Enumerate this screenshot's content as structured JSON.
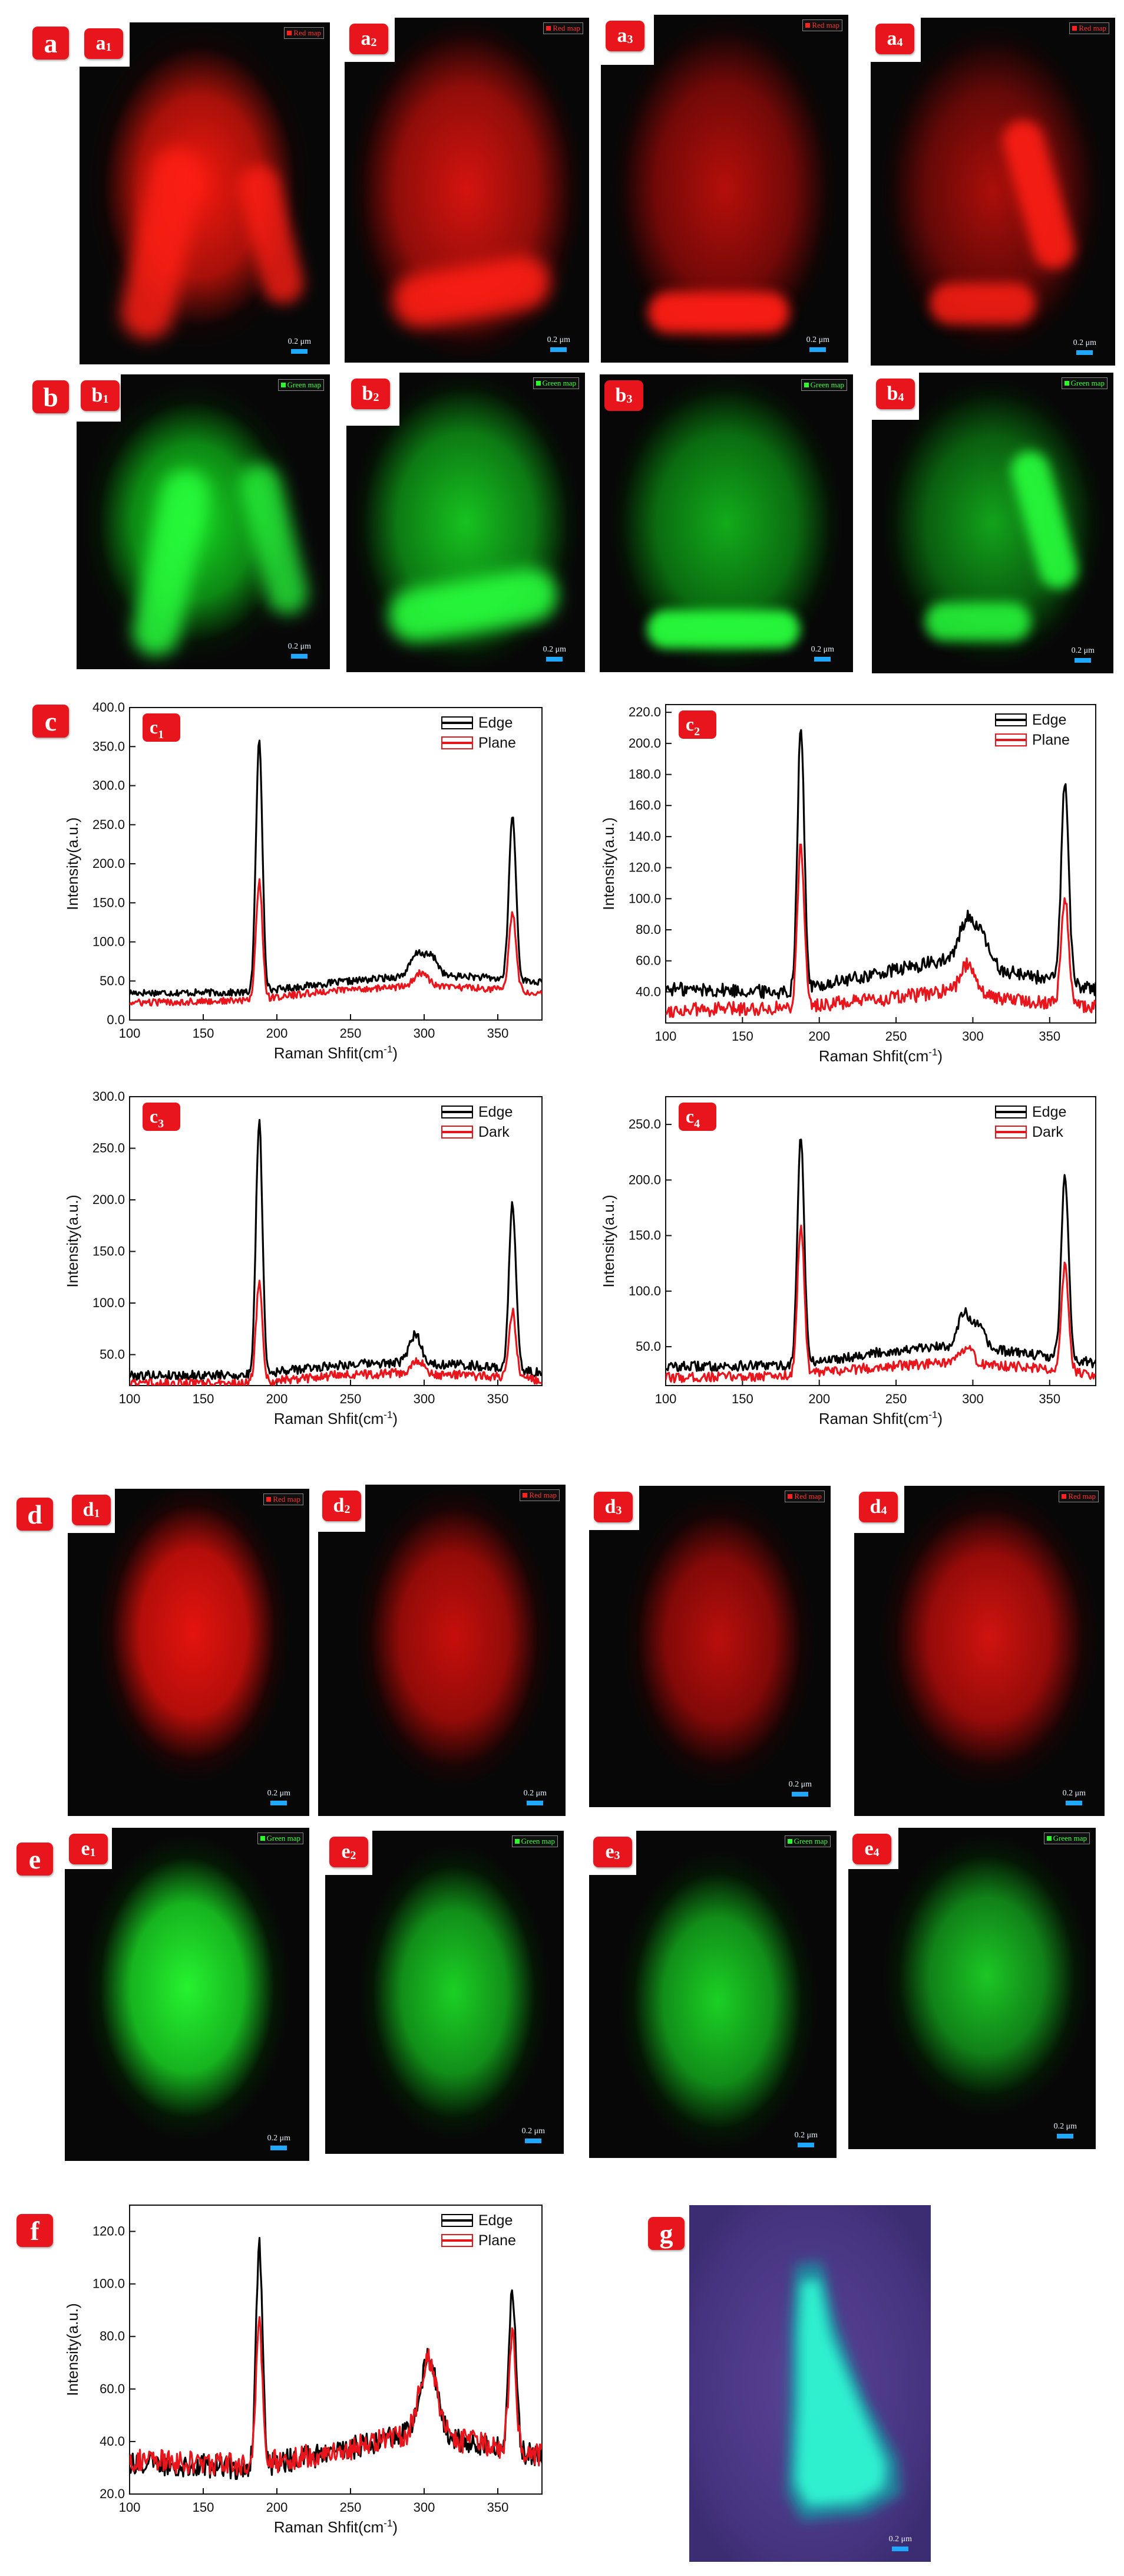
{
  "panels": {
    "a": "a",
    "b": "b",
    "c": "c",
    "d": "d",
    "e": "e",
    "f": "f",
    "g": "g"
  },
  "sub_letters": {
    "a": "a",
    "b": "b",
    "c": "c",
    "d": "d",
    "e": "e"
  },
  "sub_numbers": [
    "1",
    "2",
    "3",
    "4"
  ],
  "legend_labels": {
    "red": "Red map",
    "green": "Green map"
  },
  "scale_text": "0.2 μm",
  "colors": {
    "red": "#ff1a10",
    "green": "#1aff2a",
    "cyan": "#2af0d0",
    "purple": "#5a3a8a",
    "edge": "#000000",
    "plane": "#e8161c",
    "scalebar": "#1ea9ff"
  },
  "chart_data": [
    {
      "id": "c1",
      "label": "c",
      "sub": "1",
      "type": "line",
      "xlabel": "Raman Shfit(cm",
      "xlabel_sup": "-1",
      "xlabel_end": ")",
      "ylabel": "Intensity(a.u.)",
      "xlim": [
        100,
        380
      ],
      "ylim": [
        0,
        400
      ],
      "xticks": [
        100,
        150,
        200,
        250,
        300,
        350
      ],
      "yticks": [
        "0.0",
        "50.0",
        "100.0",
        "150.0",
        "200.0",
        "250.0",
        "300.0",
        "350.0",
        "400.0"
      ],
      "ytick_values": [
        0,
        50,
        100,
        150,
        200,
        250,
        300,
        350,
        400
      ],
      "legend_position": "top-right",
      "series": [
        {
          "name": "Edge",
          "color": "#000000",
          "baseline": [
            [
              100,
              35
            ],
            [
              180,
              35
            ],
            [
              240,
              48
            ],
            [
              280,
              55
            ],
            [
              330,
              56
            ],
            [
              380,
              48
            ]
          ],
          "peaks": [
            [
              188,
              320,
              2.2
            ],
            [
              296,
              30,
              5
            ],
            [
              306,
              22,
              4
            ],
            [
              360,
              210,
              2.4
            ]
          ]
        },
        {
          "name": "Plane",
          "color": "#e8161c",
          "baseline": [
            [
              100,
              22
            ],
            [
              180,
              25
            ],
            [
              240,
              38
            ],
            [
              280,
              42
            ],
            [
              330,
              42
            ],
            [
              380,
              35
            ]
          ],
          "peaks": [
            [
              188,
              150,
              2.2
            ],
            [
              298,
              18,
              5
            ],
            [
              360,
              100,
              2.4
            ]
          ]
        }
      ]
    },
    {
      "id": "c2",
      "label": "c",
      "sub": "2",
      "type": "line",
      "xlabel": "Raman Shfit(cm",
      "xlabel_sup": "-1",
      "xlabel_end": ")",
      "ylabel": "Intensity(a.u.)",
      "xlim": [
        100,
        380
      ],
      "ylim": [
        20,
        225
      ],
      "xticks": [
        100,
        150,
        200,
        250,
        300,
        350
      ],
      "yticks": [
        "40.0",
        "60.0",
        "80.0",
        "100.0",
        "120.0",
        "140.0",
        "160.0",
        "180.0",
        "200.0",
        "220.0"
      ],
      "ytick_values": [
        40,
        60,
        80,
        100,
        120,
        140,
        160,
        180,
        200,
        220
      ],
      "legend_position": "top-right",
      "series": [
        {
          "name": "Edge",
          "color": "#000000",
          "baseline": [
            [
              100,
              42
            ],
            [
              180,
              40
            ],
            [
              240,
              52
            ],
            [
              280,
              60
            ],
            [
              330,
              52
            ],
            [
              380,
              42
            ]
          ],
          "peaks": [
            [
              188,
              170,
              2.2
            ],
            [
              296,
              28,
              5
            ],
            [
              306,
              18,
              5
            ],
            [
              360,
              130,
              2.4
            ]
          ]
        },
        {
          "name": "Plane",
          "color": "#e8161c",
          "baseline": [
            [
              100,
              28
            ],
            [
              180,
              30
            ],
            [
              240,
              35
            ],
            [
              280,
              40
            ],
            [
              330,
              35
            ],
            [
              380,
              30
            ]
          ],
          "peaks": [
            [
              188,
              105,
              2.2
            ],
            [
              297,
              20,
              5
            ],
            [
              360,
              70,
              2.4
            ]
          ]
        }
      ]
    },
    {
      "id": "c3",
      "label": "c",
      "sub": "3",
      "type": "line",
      "xlabel": "Raman Shfit(cm",
      "xlabel_sup": "-1",
      "xlabel_end": ")",
      "ylabel": "Intensity(a.u.)",
      "xlim": [
        100,
        380
      ],
      "ylim": [
        20,
        300
      ],
      "xticks": [
        100,
        150,
        200,
        250,
        300,
        350
      ],
      "yticks": [
        "50.0",
        "100.0",
        "150.0",
        "200.0",
        "250.0",
        "300.0"
      ],
      "ytick_values": [
        50,
        100,
        150,
        200,
        250,
        300
      ],
      "legend_position": "top-right",
      "series": [
        {
          "name": "Edge",
          "color": "#000000",
          "baseline": [
            [
              100,
              30
            ],
            [
              180,
              30
            ],
            [
              240,
              40
            ],
            [
              280,
              42
            ],
            [
              330,
              40
            ],
            [
              380,
              32
            ]
          ],
          "peaks": [
            [
              188,
              245,
              2.2
            ],
            [
              294,
              28,
              4
            ],
            [
              360,
              160,
              2.4
            ]
          ]
        },
        {
          "name": "Dark",
          "color": "#e8161c",
          "baseline": [
            [
              100,
              22
            ],
            [
              180,
              22
            ],
            [
              240,
              30
            ],
            [
              280,
              32
            ],
            [
              330,
              30
            ],
            [
              380,
              25
            ]
          ],
          "peaks": [
            [
              188,
              95,
              2.2
            ],
            [
              296,
              12,
              4
            ],
            [
              360,
              65,
              2.4
            ]
          ]
        }
      ]
    },
    {
      "id": "c4",
      "label": "c",
      "sub": "4",
      "type": "line",
      "xlabel": "Raman Shfit(cm",
      "xlabel_sup": "-1",
      "xlabel_end": ")",
      "ylabel": "Intensity(a.u.)",
      "xlim": [
        100,
        380
      ],
      "ylim": [
        15,
        275
      ],
      "xticks": [
        100,
        150,
        200,
        250,
        300,
        350
      ],
      "yticks": [
        "50.0",
        "100.0",
        "150.0",
        "200.0",
        "250.0"
      ],
      "ytick_values": [
        50,
        100,
        150,
        200,
        250
      ],
      "legend_position": "top-right",
      "series": [
        {
          "name": "Edge",
          "color": "#000000",
          "baseline": [
            [
              100,
              32
            ],
            [
              180,
              33
            ],
            [
              240,
              45
            ],
            [
              280,
              50
            ],
            [
              330,
              45
            ],
            [
              380,
              35
            ]
          ],
          "peaks": [
            [
              188,
              205,
              2.2
            ],
            [
              294,
              32,
              4
            ],
            [
              304,
              20,
              4
            ],
            [
              360,
              165,
              2.4
            ]
          ]
        },
        {
          "name": "Dark",
          "color": "#e8161c",
          "baseline": [
            [
              100,
              22
            ],
            [
              180,
              24
            ],
            [
              240,
              32
            ],
            [
              280,
              35
            ],
            [
              330,
              32
            ],
            [
              380,
              25
            ]
          ],
          "peaks": [
            [
              188,
              135,
              2.2
            ],
            [
              296,
              16,
              4
            ],
            [
              360,
              95,
              2.4
            ]
          ]
        }
      ]
    },
    {
      "id": "f",
      "label": "f",
      "sub": "",
      "type": "line",
      "xlabel": "Raman Shfit(cm",
      "xlabel_sup": "-1",
      "xlabel_end": ")",
      "ylabel": "Intensity(a.u.)",
      "xlim": [
        100,
        380
      ],
      "ylim": [
        20,
        130
      ],
      "xticks": [
        100,
        150,
        200,
        250,
        300,
        350
      ],
      "yticks": [
        "20.0",
        "40.0",
        "60.0",
        "80.0",
        "100.0",
        "120.0"
      ],
      "ytick_values": [
        20,
        40,
        60,
        80,
        100,
        120
      ],
      "legend_position": "top-right",
      "series": [
        {
          "name": "Edge",
          "color": "#000000",
          "baseline": [
            [
              100,
              32
            ],
            [
              180,
              30
            ],
            [
              240,
              36
            ],
            [
              280,
              42
            ],
            [
              330,
              40
            ],
            [
              380,
              34
            ]
          ],
          "peaks": [
            [
              188,
              85,
              2.2
            ],
            [
              303,
              30,
              6
            ],
            [
              360,
              62,
              2.4
            ]
          ]
        },
        {
          "name": "Plane",
          "color": "#e8161c",
          "baseline": [
            [
              100,
              33
            ],
            [
              180,
              31
            ],
            [
              240,
              36
            ],
            [
              280,
              42
            ],
            [
              330,
              40
            ],
            [
              380,
              35
            ]
          ],
          "peaks": [
            [
              188,
              52,
              2.2
            ],
            [
              303,
              30,
              6
            ],
            [
              360,
              45,
              2.4
            ]
          ]
        }
      ]
    }
  ]
}
